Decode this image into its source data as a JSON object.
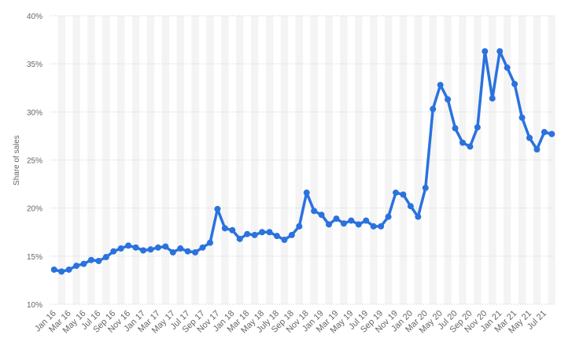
{
  "chart_data": {
    "type": "line",
    "y_label": "Share of sales",
    "categories": [
      "Jan 16",
      null,
      "Mar 16",
      null,
      "May 16",
      null,
      "Jul 16",
      null,
      "Sep 16",
      null,
      "Nov 16",
      null,
      "Jan 17",
      null,
      "Mar 17",
      null,
      "May 17",
      null,
      "Jul 17",
      null,
      "Sep 17",
      null,
      "Nov 17",
      null,
      "Jan 18",
      null,
      "Mar 18",
      null,
      "May 18",
      null,
      "July 18",
      null,
      "Sep 18",
      null,
      "Nov 18",
      null,
      "Jan 19",
      null,
      "Mar 19",
      null,
      "May 19",
      null,
      "Jul 19",
      null,
      "Sep 19",
      null,
      "Nov 19",
      null,
      "Jan 20",
      null,
      "Mar 20",
      null,
      "May 20",
      null,
      "Jul 20",
      null,
      "Sep 20",
      null,
      "Nov 20",
      null,
      "Jan 21",
      null,
      "Mar 21",
      null,
      "May 21",
      null,
      "Jul 21",
      null
    ],
    "values": [
      13.6,
      13.4,
      13.6,
      14.0,
      14.2,
      14.6,
      14.5,
      14.9,
      15.5,
      15.8,
      16.1,
      15.9,
      15.6,
      15.7,
      15.9,
      16.0,
      15.4,
      15.8,
      15.5,
      15.4,
      15.9,
      16.4,
      19.9,
      17.9,
      17.7,
      16.8,
      17.3,
      17.2,
      17.5,
      17.5,
      17.1,
      16.7,
      17.2,
      18.1,
      21.6,
      19.7,
      19.3,
      18.3,
      18.9,
      18.4,
      18.7,
      18.3,
      18.7,
      18.1,
      18.1,
      19.1,
      21.6,
      21.4,
      20.2,
      19.1,
      22.1,
      30.3,
      32.8,
      31.3,
      28.3,
      26.8,
      26.4,
      28.4,
      36.3,
      31.4,
      36.3,
      34.6,
      32.9,
      29.4,
      27.3,
      26.1,
      27.9,
      27.7
    ],
    "color": "#2a72de",
    "ylim": [
      10,
      40
    ],
    "yticks": [
      {
        "value": 10,
        "label": "10%"
      },
      {
        "value": 15,
        "label": "15%"
      },
      {
        "value": 20,
        "label": "20%"
      },
      {
        "value": 25,
        "label": "25%"
      },
      {
        "value": 30,
        "label": "30%"
      },
      {
        "value": 35,
        "label": "35%"
      },
      {
        "value": 40,
        "label": "40%"
      }
    ],
    "grid": true
  }
}
